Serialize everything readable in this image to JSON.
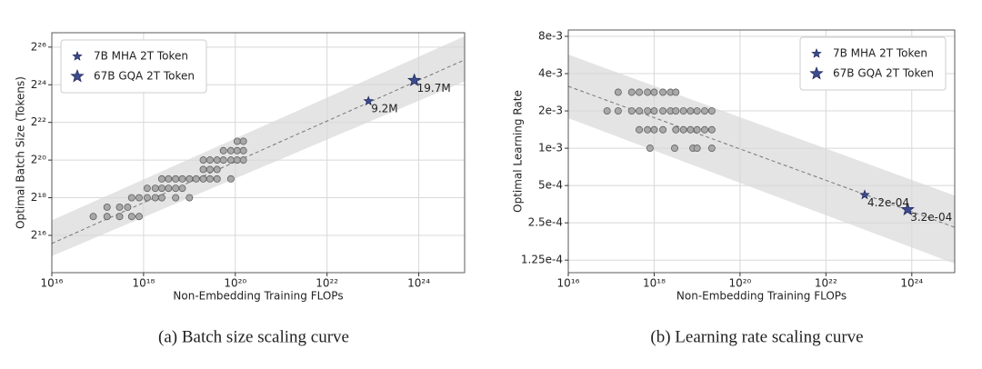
{
  "chart_data": [
    {
      "type": "scatter",
      "caption": "(a)  Batch size scaling curve",
      "xlabel": "Non-Embedding Training FLOPs",
      "ylabel": "Optimal Batch Size (Tokens)",
      "xscale": "log",
      "yscale": "log",
      "grid": true,
      "legend": "upper left",
      "xlim": [
        1e+16,
        1e+25
      ],
      "ylim": [
        16600,
        114000000
      ],
      "xticks": [
        {
          "value": 1e+16,
          "label": "10¹⁶"
        },
        {
          "value": 1e+18,
          "label": "10¹⁸"
        },
        {
          "value": 1e+20,
          "label": "10²⁰"
        },
        {
          "value": 1e+22,
          "label": "10²²"
        },
        {
          "value": 1e+24,
          "label": "10²⁴"
        }
      ],
      "yticks": [
        {
          "value": 65536,
          "label": "2¹⁶"
        },
        {
          "value": 262144,
          "label": "2¹⁸"
        },
        {
          "value": 1048576,
          "label": "2²⁰"
        },
        {
          "value": 4194304,
          "label": "2²²"
        },
        {
          "value": 16777216,
          "label": "2²⁴"
        },
        {
          "value": 67108864,
          "label": "2²⁶"
        }
      ],
      "band": {
        "color": "#e4e4e4",
        "x": [
          1e+16,
          1e+25
        ],
        "lower": [
          30600,
          19000000
        ],
        "upper": [
          114000,
          100000000
        ]
      },
      "fit": {
        "color": "#777777",
        "x": [
          1e+16,
          1e+25
        ],
        "values": [
          48600,
          42000000
        ]
      },
      "series": [
        {
          "color": "#a8a8a8",
          "marker": "circle",
          "x": [
            8e+16,
            1.6e+17,
            1.6e+17,
            3e+17,
            3e+17,
            4.5e+17,
            5.5e+17,
            5.5e+17,
            8e+17,
            8e+17,
            1.2e+18,
            1.2e+18,
            1.8e+18,
            1.8e+18,
            2.5e+18,
            2.5e+18,
            2.5e+18,
            3.5e+18,
            3.5e+18,
            5e+18,
            5e+18,
            5e+18,
            7e+18,
            7e+18,
            1e+19,
            1e+19,
            1.4e+19,
            2e+19,
            2e+19,
            2e+19,
            2.8e+19,
            2.8e+19,
            2.8e+19,
            4e+19,
            4e+19,
            4e+19,
            5.5e+19,
            5.5e+19,
            8e+19,
            8e+19,
            8e+19,
            1.1e+20,
            1.1e+20,
            1.1e+20,
            1.5e+20,
            1.5e+20,
            1.5e+20
          ],
          "values": [
            131072,
            131072,
            185364,
            131072,
            185364,
            185364,
            131072,
            262144,
            131072,
            262144,
            262144,
            370728,
            262144,
            370728,
            262144,
            370728,
            524288,
            370728,
            524288,
            262144,
            370728,
            524288,
            370728,
            524288,
            262144,
            524288,
            524288,
            524288,
            741455,
            1048576,
            524288,
            741455,
            1048576,
            524288,
            741455,
            1048576,
            1048576,
            1482910,
            524288,
            1048576,
            1482910,
            1048576,
            1482910,
            2097152,
            1048576,
            1482910,
            2097152
          ]
        },
        {
          "name": "7B MHA 2T Token",
          "color": "#3d4b8e",
          "marker": "star",
          "x": [
            8e+22
          ],
          "values": [
            9200000
          ],
          "value_labels": [
            "9.2M"
          ]
        },
        {
          "name": "67B GQA 2T Token",
          "color": "#3d4b8e",
          "marker": "star",
          "x": [
            8e+23
          ],
          "values": [
            19700000
          ],
          "value_labels": [
            "19.7M"
          ]
        }
      ]
    },
    {
      "type": "scatter",
      "caption": "(b)  Learning rate scaling curve",
      "xlabel": "Non-Embedding Training FLOPs",
      "ylabel": "Optimal Learning Rate",
      "xscale": "log",
      "yscale": "log",
      "grid": true,
      "legend": "upper right",
      "xlim": [
        1e+16,
        1e+25
      ],
      "ylim": [
        9.9e-05,
        0.009
      ],
      "xticks": [
        {
          "value": 1e+16,
          "label": "10¹⁶"
        },
        {
          "value": 1e+18,
          "label": "10¹⁸"
        },
        {
          "value": 1e+20,
          "label": "10²⁰"
        },
        {
          "value": 1e+22,
          "label": "10²²"
        },
        {
          "value": 1e+24,
          "label": "10²⁴"
        }
      ],
      "yticks": [
        {
          "value": 0.000125,
          "label": "1.25e-4"
        },
        {
          "value": 0.00025,
          "label": "2.5e-4"
        },
        {
          "value": 0.0005,
          "label": "5e-4"
        },
        {
          "value": 0.001,
          "label": "1e-3"
        },
        {
          "value": 0.002,
          "label": "2e-3"
        },
        {
          "value": 0.004,
          "label": "4e-3"
        },
        {
          "value": 0.008,
          "label": "8e-3"
        }
      ],
      "band": {
        "color": "#e4e4e4",
        "x": [
          1e+16,
          1e+25
        ],
        "lower": [
          0.00175,
          0.000117
        ],
        "upper": [
          0.0057,
          0.000415
        ]
      },
      "fit": {
        "color": "#777777",
        "x": [
          1e+16,
          1e+25
        ],
        "values": [
          0.00316,
          0.00023
        ]
      },
      "series": [
        {
          "color": "#a8a8a8",
          "marker": "circle",
          "x": [
            1.45e+17,
            3e+17,
            4.5e+17,
            7e+17,
            1e+18,
            1.6e+18,
            2.4e+18,
            3.2e+18,
            8e+16,
            1.45e+17,
            3e+17,
            4.5e+17,
            7e+17,
            1e+18,
            1.6e+18,
            2.4e+18,
            3.2e+18,
            4.8e+18,
            7e+18,
            1e+19,
            1.5e+19,
            2.2e+19,
            4.5e+17,
            7e+17,
            1e+18,
            1.6e+18,
            3.2e+18,
            4.8e+18,
            7e+18,
            1e+19,
            1.5e+19,
            2.2e+19,
            8e+17,
            3e+18,
            8e+18,
            1e+19,
            2.2e+19
          ],
          "values": [
            0.00283,
            0.00283,
            0.00283,
            0.00283,
            0.00283,
            0.00283,
            0.00283,
            0.00283,
            0.002,
            0.002,
            0.002,
            0.002,
            0.002,
            0.002,
            0.002,
            0.002,
            0.002,
            0.002,
            0.002,
            0.002,
            0.002,
            0.002,
            0.00141,
            0.00141,
            0.00141,
            0.00141,
            0.00141,
            0.00141,
            0.00141,
            0.00141,
            0.00141,
            0.00141,
            0.001,
            0.001,
            0.001,
            0.001,
            0.001
          ]
        },
        {
          "name": "7B MHA 2T Token",
          "color": "#3d4b8e",
          "marker": "star",
          "x": [
            8e+22
          ],
          "values": [
            0.00042
          ],
          "value_labels": [
            "4.2e-04"
          ]
        },
        {
          "name": "67B GQA 2T Token",
          "color": "#3d4b8e",
          "marker": "star",
          "x": [
            8e+23
          ],
          "values": [
            0.00032
          ],
          "value_labels": [
            "3.2e-04"
          ]
        }
      ]
    }
  ]
}
